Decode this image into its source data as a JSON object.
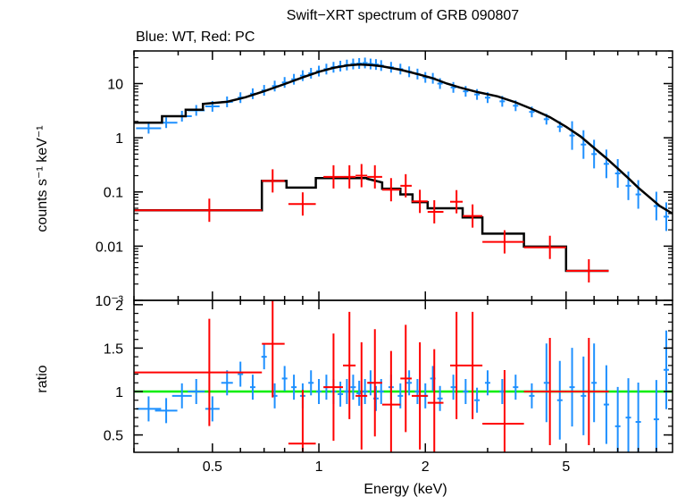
{
  "title": "Swift−XRT spectrum of GRB 090807",
  "subtitle": "Blue: WT, Red: PC",
  "colors": {
    "wt": "#1e90ff",
    "pc": "#ff0000",
    "model": "#000000",
    "unity": "#00ee00"
  },
  "chart_data": [
    {
      "type": "scatter",
      "panel": "spectrum",
      "xlabel": "Energy (keV)",
      "ylabel": "counts s⁻¹ keV⁻¹",
      "xscale": "log",
      "yscale": "log",
      "xlim": [
        0.3,
        10
      ],
      "ylim": [
        0.001,
        40
      ],
      "ytick_labels": [
        "10⁻³",
        "0.01",
        "0.1",
        "1",
        "10"
      ],
      "ytick_values": [
        0.001,
        0.01,
        0.1,
        1,
        10
      ],
      "series": [
        {
          "name": "WT",
          "points": [
            {
              "x": 0.33,
              "y": 1.5
            },
            {
              "x": 0.37,
              "y": 1.9
            },
            {
              "x": 0.41,
              "y": 2.5
            },
            {
              "x": 0.45,
              "y": 3.2
            },
            {
              "x": 0.5,
              "y": 3.8
            },
            {
              "x": 0.55,
              "y": 4.6
            },
            {
              "x": 0.6,
              "y": 5.5
            },
            {
              "x": 0.65,
              "y": 6.5
            },
            {
              "x": 0.7,
              "y": 7.5
            },
            {
              "x": 0.75,
              "y": 9.0
            },
            {
              "x": 0.8,
              "y": 10.5
            },
            {
              "x": 0.85,
              "y": 12
            },
            {
              "x": 0.9,
              "y": 14
            },
            {
              "x": 0.95,
              "y": 15.5
            },
            {
              "x": 1.0,
              "y": 17
            },
            {
              "x": 1.05,
              "y": 18.5
            },
            {
              "x": 1.1,
              "y": 20
            },
            {
              "x": 1.15,
              "y": 21
            },
            {
              "x": 1.2,
              "y": 22
            },
            {
              "x": 1.25,
              "y": 23
            },
            {
              "x": 1.3,
              "y": 23.5
            },
            {
              "x": 1.35,
              "y": 24
            },
            {
              "x": 1.4,
              "y": 23
            },
            {
              "x": 1.45,
              "y": 22.5
            },
            {
              "x": 1.5,
              "y": 21.5
            },
            {
              "x": 1.6,
              "y": 20
            },
            {
              "x": 1.7,
              "y": 18.5
            },
            {
              "x": 1.8,
              "y": 16.5
            },
            {
              "x": 1.9,
              "y": 15
            },
            {
              "x": 2.0,
              "y": 13
            },
            {
              "x": 2.1,
              "y": 12.5
            },
            {
              "x": 2.2,
              "y": 10
            },
            {
              "x": 2.4,
              "y": 8.5
            },
            {
              "x": 2.6,
              "y": 7.2
            },
            {
              "x": 2.8,
              "y": 6.3
            },
            {
              "x": 3.0,
              "y": 5.5
            },
            {
              "x": 3.3,
              "y": 4.7
            },
            {
              "x": 3.6,
              "y": 3.9
            },
            {
              "x": 4.0,
              "y": 3.0
            },
            {
              "x": 4.4,
              "y": 2.2
            },
            {
              "x": 4.8,
              "y": 1.6
            },
            {
              "x": 5.2,
              "y": 1.1
            },
            {
              "x": 5.6,
              "y": 0.75
            },
            {
              "x": 6.0,
              "y": 0.5
            },
            {
              "x": 6.5,
              "y": 0.33
            },
            {
              "x": 7.0,
              "y": 0.22
            },
            {
              "x": 7.5,
              "y": 0.13
            },
            {
              "x": 8.0,
              "y": 0.09
            },
            {
              "x": 9.0,
              "y": 0.055
            },
            {
              "x": 9.6,
              "y": 0.035
            }
          ]
        },
        {
          "name": "PC",
          "points": [
            {
              "x": 0.49,
              "y": 0.046,
              "xlo": 0.3,
              "xhi": 0.69
            },
            {
              "x": 0.74,
              "y": 0.16,
              "xlo": 0.69,
              "xhi": 0.8
            },
            {
              "x": 0.9,
              "y": 0.06,
              "xlo": 0.82,
              "xhi": 0.98
            },
            {
              "x": 1.1,
              "y": 0.19,
              "xlo": 1.03,
              "xhi": 1.17
            },
            {
              "x": 1.22,
              "y": 0.19,
              "xlo": 1.17,
              "xhi": 1.27
            },
            {
              "x": 1.32,
              "y": 0.2,
              "xlo": 1.27,
              "xhi": 1.37
            },
            {
              "x": 1.44,
              "y": 0.19,
              "xlo": 1.37,
              "xhi": 1.51
            },
            {
              "x": 1.6,
              "y": 0.11,
              "xlo": 1.51,
              "xhi": 1.7
            },
            {
              "x": 1.76,
              "y": 0.13,
              "xlo": 1.7,
              "xhi": 1.83
            },
            {
              "x": 1.93,
              "y": 0.067,
              "xlo": 1.83,
              "xhi": 2.03
            },
            {
              "x": 2.12,
              "y": 0.043,
              "xlo": 2.03,
              "xhi": 2.25
            },
            {
              "x": 2.45,
              "y": 0.066,
              "xlo": 2.35,
              "xhi": 2.55
            },
            {
              "x": 2.72,
              "y": 0.036,
              "xlo": 2.55,
              "xhi": 2.9
            },
            {
              "x": 3.35,
              "y": 0.012,
              "xlo": 2.9,
              "xhi": 3.8
            },
            {
              "x": 4.5,
              "y": 0.0095,
              "xlo": 3.8,
              "xhi": 5.0
            },
            {
              "x": 5.8,
              "y": 0.0035,
              "xlo": 5.0,
              "xhi": 6.6
            }
          ]
        }
      ],
      "model_wt": [
        [
          0.3,
          1.9
        ],
        [
          0.36,
          1.9
        ],
        [
          0.36,
          2.5
        ],
        [
          0.42,
          2.5
        ],
        [
          0.42,
          3.3
        ],
        [
          0.47,
          3.3
        ],
        [
          0.47,
          4.2
        ],
        [
          0.55,
          4.6
        ],
        [
          0.62,
          5.6
        ],
        [
          0.7,
          7.2
        ],
        [
          0.8,
          9.8
        ],
        [
          0.9,
          13
        ],
        [
          1.0,
          16.5
        ],
        [
          1.1,
          19.5
        ],
        [
          1.2,
          21.5
        ],
        [
          1.3,
          22.5
        ],
        [
          1.4,
          22
        ],
        [
          1.5,
          21
        ],
        [
          1.7,
          18
        ],
        [
          1.9,
          15
        ],
        [
          2.1,
          12.5
        ],
        [
          2.3,
          10
        ],
        [
          2.5,
          8.5
        ],
        [
          2.8,
          7
        ],
        [
          3.2,
          5.8
        ],
        [
          3.6,
          4.5
        ],
        [
          4.0,
          3.4
        ],
        [
          4.5,
          2.4
        ],
        [
          5.0,
          1.6
        ],
        [
          5.5,
          1.05
        ],
        [
          6.0,
          0.65
        ],
        [
          6.5,
          0.42
        ],
        [
          7.0,
          0.27
        ],
        [
          7.5,
          0.18
        ],
        [
          8.0,
          0.12
        ],
        [
          8.6,
          0.08
        ],
        [
          9.2,
          0.055
        ],
        [
          10,
          0.04
        ]
      ],
      "model_pc": [
        [
          0.3,
          0.046
        ],
        [
          0.69,
          0.046
        ],
        [
          0.69,
          0.16
        ],
        [
          0.81,
          0.16
        ],
        [
          0.81,
          0.12
        ],
        [
          0.98,
          0.12
        ],
        [
          0.98,
          0.18
        ],
        [
          1.37,
          0.18
        ],
        [
          1.37,
          0.175
        ],
        [
          1.51,
          0.15
        ],
        [
          1.51,
          0.115
        ],
        [
          1.7,
          0.115
        ],
        [
          1.7,
          0.09
        ],
        [
          1.84,
          0.09
        ],
        [
          1.84,
          0.065
        ],
        [
          2.03,
          0.065
        ],
        [
          2.03,
          0.05
        ],
        [
          2.55,
          0.05
        ],
        [
          2.55,
          0.034
        ],
        [
          2.9,
          0.034
        ],
        [
          2.9,
          0.017
        ],
        [
          3.8,
          0.017
        ],
        [
          3.8,
          0.0098
        ],
        [
          5.0,
          0.0098
        ],
        [
          5.0,
          0.0035
        ],
        [
          6.6,
          0.0035
        ]
      ]
    },
    {
      "type": "scatter",
      "panel": "ratio",
      "xlabel": "Energy (keV)",
      "ylabel": "ratio",
      "xscale": "log",
      "xlim": [
        0.3,
        10
      ],
      "ylim": [
        0.3,
        2.05
      ],
      "ytick_labels": [
        "0.5",
        "1",
        "1.5",
        "2"
      ],
      "ytick_values": [
        0.5,
        1,
        1.5,
        2
      ],
      "xtick_labels": [
        "0.5",
        "1",
        "2",
        "5"
      ],
      "xtick_values": [
        0.5,
        1,
        2,
        5
      ],
      "unity_line": 1,
      "series": [
        {
          "name": "WT",
          "points": [
            {
              "x": 0.33,
              "y": 0.8
            },
            {
              "x": 0.37,
              "y": 0.78
            },
            {
              "x": 0.41,
              "y": 0.95
            },
            {
              "x": 0.45,
              "y": 1.0
            },
            {
              "x": 0.5,
              "y": 0.8
            },
            {
              "x": 0.55,
              "y": 1.1
            },
            {
              "x": 0.6,
              "y": 1.2
            },
            {
              "x": 0.65,
              "y": 1.05
            },
            {
              "x": 0.7,
              "y": 1.4
            },
            {
              "x": 0.75,
              "y": 0.95
            },
            {
              "x": 0.8,
              "y": 1.15
            },
            {
              "x": 0.85,
              "y": 1.05
            },
            {
              "x": 0.9,
              "y": 0.95
            },
            {
              "x": 0.95,
              "y": 1.1
            },
            {
              "x": 1.0,
              "y": 1.0
            },
            {
              "x": 1.05,
              "y": 1.05
            },
            {
              "x": 1.1,
              "y": 1.0
            },
            {
              "x": 1.15,
              "y": 0.97
            },
            {
              "x": 1.2,
              "y": 1.0
            },
            {
              "x": 1.25,
              "y": 1.05
            },
            {
              "x": 1.3,
              "y": 0.98
            },
            {
              "x": 1.35,
              "y": 1.0
            },
            {
              "x": 1.4,
              "y": 1.1
            },
            {
              "x": 1.45,
              "y": 0.92
            },
            {
              "x": 1.5,
              "y": 1.0
            },
            {
              "x": 1.6,
              "y": 1.05
            },
            {
              "x": 1.7,
              "y": 0.95
            },
            {
              "x": 1.8,
              "y": 1.1
            },
            {
              "x": 1.9,
              "y": 1.0
            },
            {
              "x": 2.0,
              "y": 0.95
            },
            {
              "x": 2.1,
              "y": 1.15
            },
            {
              "x": 2.2,
              "y": 0.92
            },
            {
              "x": 2.4,
              "y": 1.05
            },
            {
              "x": 2.6,
              "y": 1.0
            },
            {
              "x": 2.8,
              "y": 0.9
            },
            {
              "x": 3.0,
              "y": 1.1
            },
            {
              "x": 3.3,
              "y": 1.0
            },
            {
              "x": 3.6,
              "y": 1.05
            },
            {
              "x": 4.0,
              "y": 0.95
            },
            {
              "x": 4.4,
              "y": 1.1
            },
            {
              "x": 4.8,
              "y": 0.9
            },
            {
              "x": 5.2,
              "y": 1.05
            },
            {
              "x": 5.6,
              "y": 0.95
            },
            {
              "x": 6.0,
              "y": 1.1
            },
            {
              "x": 6.5,
              "y": 0.85
            },
            {
              "x": 7.0,
              "y": 0.6
            },
            {
              "x": 7.5,
              "y": 0.7
            },
            {
              "x": 8.0,
              "y": 0.65
            },
            {
              "x": 9.0,
              "y": 0.68
            },
            {
              "x": 9.6,
              "y": 1.25
            }
          ]
        },
        {
          "name": "PC",
          "points": [
            {
              "x": 0.49,
              "y": 1.22,
              "xlo": 0.3,
              "xhi": 0.69
            },
            {
              "x": 0.74,
              "y": 1.55,
              "xlo": 0.69,
              "xhi": 0.8
            },
            {
              "x": 0.9,
              "y": 0.4,
              "xlo": 0.82,
              "xhi": 0.98
            },
            {
              "x": 1.1,
              "y": 1.05,
              "xlo": 1.03,
              "xhi": 1.17
            },
            {
              "x": 1.22,
              "y": 1.3,
              "xlo": 1.17,
              "xhi": 1.27
            },
            {
              "x": 1.32,
              "y": 0.95,
              "xlo": 1.27,
              "xhi": 1.37
            },
            {
              "x": 1.44,
              "y": 1.1,
              "xlo": 1.37,
              "xhi": 1.51
            },
            {
              "x": 1.6,
              "y": 0.85,
              "xlo": 1.51,
              "xhi": 1.7
            },
            {
              "x": 1.76,
              "y": 1.15,
              "xlo": 1.7,
              "xhi": 1.83
            },
            {
              "x": 1.93,
              "y": 0.95,
              "xlo": 1.83,
              "xhi": 2.03
            },
            {
              "x": 2.12,
              "y": 0.87,
              "xlo": 2.03,
              "xhi": 2.25
            },
            {
              "x": 2.45,
              "y": 1.3,
              "xlo": 2.35,
              "xhi": 2.55
            },
            {
              "x": 2.72,
              "y": 1.3,
              "xlo": 2.55,
              "xhi": 2.9
            },
            {
              "x": 3.35,
              "y": 0.63,
              "xlo": 2.9,
              "xhi": 3.8
            },
            {
              "x": 4.5,
              "y": 1.0,
              "xlo": 3.8,
              "xhi": 5.0
            },
            {
              "x": 5.8,
              "y": 1.0,
              "xlo": 5.0,
              "xhi": 6.6
            }
          ]
        }
      ]
    }
  ]
}
